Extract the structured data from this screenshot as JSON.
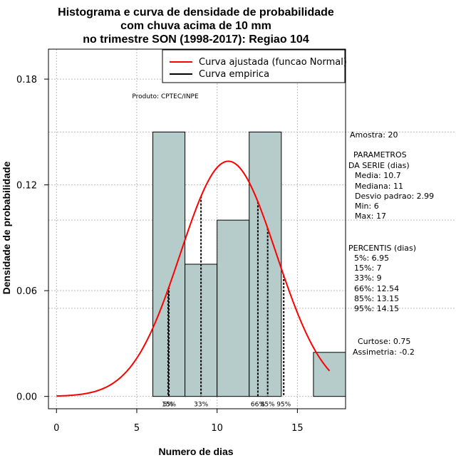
{
  "chart_data": {
    "type": "histogram",
    "title_lines": [
      "Histograma e curva de densidade de probabilidade",
      "com chuva acima de 10 mm",
      "no trimestre SON (1998-2017): Regiao 104"
    ],
    "xlabel": "Numero de dias",
    "ylabel": "Densidade de probabilidade",
    "xlim": [
      -0.5,
      18
    ],
    "ylim": [
      -0.007,
      0.197
    ],
    "xticks": [
      0,
      5,
      10,
      15
    ],
    "yticks": [
      0.0,
      0.06,
      0.12,
      0.18
    ],
    "ytick_labels": [
      "0.00",
      "0.06",
      "0.12",
      "0.18"
    ],
    "bins": [
      {
        "start": 6,
        "end": 8,
        "density": 0.15
      },
      {
        "start": 8,
        "end": 10,
        "density": 0.075
      },
      {
        "start": 10,
        "end": 12,
        "density": 0.1
      },
      {
        "start": 12,
        "end": 14,
        "density": 0.15
      },
      {
        "start": 14,
        "end": 16,
        "density": 0.0
      },
      {
        "start": 16,
        "end": 18,
        "density": 0.025
      }
    ],
    "bar_color": "#b5cccb",
    "curve_color": "#ff0000",
    "normal_fit": {
      "mean": 10.7,
      "sd": 2.99,
      "x_from": 0,
      "x_to": 17
    },
    "grid": true,
    "percentile_lines": [
      {
        "label": "5%",
        "x": 6.95
      },
      {
        "label": "15%",
        "x": 7
      },
      {
        "label": "33%",
        "x": 9
      },
      {
        "label": "66%",
        "x": 12.54
      },
      {
        "label": "85%",
        "x": 13.15
      },
      {
        "label": "95%",
        "x": 14.15
      }
    ],
    "legend": {
      "placement": "top-right",
      "entries": [
        {
          "label": "Curva ajustada (funcao Normal)",
          "color": "#ff0000"
        },
        {
          "label": "Curva empirica",
          "color": "#000000"
        }
      ]
    },
    "annotations": {
      "produto": "Produto: CPTEC/INPE"
    }
  },
  "stats_panel": {
    "amostra": "Amostra: 20",
    "param_header": "PARAMETROS",
    "param_sub": "DA SERIE (dias)",
    "params": [
      "Media: 10.7",
      "Mediana: 11",
      "Desvio padrao: 2.99",
      "Min: 6",
      "Max: 17"
    ],
    "pct_header": "PERCENTIS (dias)",
    "pcts": [
      "5%: 6.95",
      "15%: 7",
      "33%: 9",
      "66%: 12.54",
      "85%: 13.15",
      "95%: 14.15"
    ],
    "curtose": "Curtose: 0.75",
    "assimetria": "Assimetria: -0.2"
  }
}
